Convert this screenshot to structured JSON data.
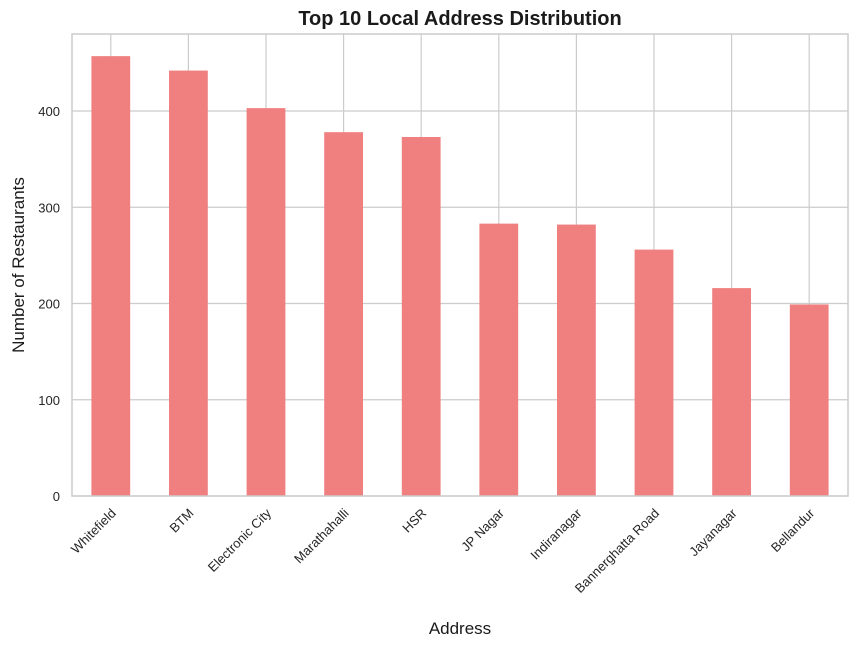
{
  "chart_data": {
    "type": "bar",
    "title": "Top 10 Local Address Distribution",
    "xlabel": "Address",
    "ylabel": "Number of Restaurants",
    "categories": [
      "Whitefield",
      "BTM",
      "Electronic City",
      "Marathahalli",
      "HSR",
      "JP Nagar",
      "Indiranagar",
      "Bannerghatta Road",
      "Jayanagar",
      "Bellandur"
    ],
    "values": [
      457,
      442,
      403,
      378,
      373,
      283,
      282,
      256,
      216,
      199
    ],
    "yticks": [
      0,
      100,
      200,
      300,
      400
    ],
    "ylim": [
      0,
      480
    ],
    "grid": true,
    "bar_color": "#f08080",
    "legend": "none"
  }
}
